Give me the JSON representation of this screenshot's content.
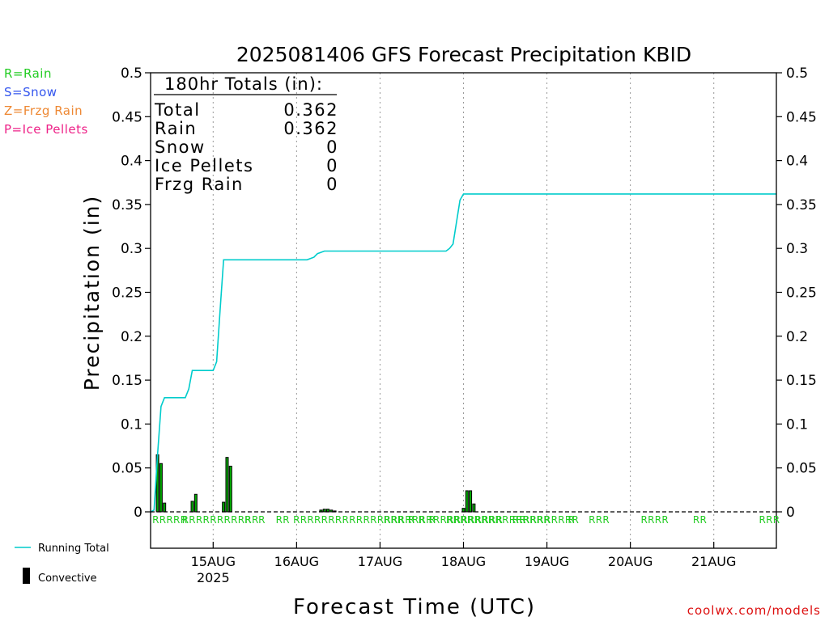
{
  "chart_data": {
    "type": "line",
    "title": "2025081406 GFS Forecast Precipitation KBID",
    "ylabel": "Precipitation (in)",
    "xlabel": "Forecast Time (UTC)",
    "ylim": [
      0,
      0.5
    ],
    "y_ticks": [
      "0",
      "0.05",
      "0.1",
      "0.15",
      "0.2",
      "0.25",
      "0.3",
      "0.35",
      "0.4",
      "0.45",
      "0.5"
    ],
    "x_range_hours": [
      0,
      180
    ],
    "x_ticks": [
      {
        "hour": 18,
        "label": "15AUG",
        "sublabel": "2025"
      },
      {
        "hour": 42,
        "label": "16AUG"
      },
      {
        "hour": 66,
        "label": "17AUG"
      },
      {
        "hour": 90,
        "label": "18AUG"
      },
      {
        "hour": 114,
        "label": "19AUG"
      },
      {
        "hour": 138,
        "label": "20AUG"
      },
      {
        "hour": 162,
        "label": "21AUG"
      }
    ],
    "grid": "vertical dotted at day boundaries",
    "precip_type_legend": [
      {
        "label": "R=Rain",
        "color": "#22cc22"
      },
      {
        "label": "S=Snow",
        "color": "#3355ee"
      },
      {
        "label": "Z=Frzg Rain",
        "color": "#ee8833"
      },
      {
        "label": "P=Ice Pellets",
        "color": "#ee2288"
      }
    ],
    "series": [
      {
        "name": "Running Total",
        "color": "#00cccc",
        "x": [
          0,
          1,
          2,
          3,
          4,
          5,
          6,
          8,
          10,
          11,
          12,
          13,
          14,
          18,
          19,
          20,
          21,
          22,
          24,
          26,
          28,
          30,
          32,
          40,
          45,
          47,
          48,
          50,
          52,
          55,
          60,
          70,
          85,
          86,
          87,
          88,
          89,
          90,
          95,
          120,
          150,
          180
        ],
        "y": [
          0,
          0.002,
          0.065,
          0.12,
          0.13,
          0.13,
          0.13,
          0.13,
          0.13,
          0.14,
          0.161,
          0.161,
          0.161,
          0.161,
          0.171,
          0.23,
          0.287,
          0.287,
          0.287,
          0.287,
          0.287,
          0.287,
          0.287,
          0.287,
          0.287,
          0.29,
          0.294,
          0.297,
          0.297,
          0.297,
          0.297,
          0.297,
          0.297,
          0.3,
          0.305,
          0.33,
          0.355,
          0.362,
          0.362,
          0.362,
          0.362,
          0.362
        ]
      }
    ],
    "bars": {
      "name": "Convective",
      "x": [
        2,
        3,
        4,
        12,
        13,
        21,
        22,
        23,
        49,
        50,
        51,
        52,
        53,
        90,
        91,
        92,
        93
      ],
      "y": [
        0.065,
        0.055,
        0.01,
        0.012,
        0.02,
        0.011,
        0.062,
        0.052,
        0.002,
        0.003,
        0.003,
        0.002,
        0.001,
        0.004,
        0.024,
        0.024,
        0.009
      ]
    },
    "precip_type_marks": [
      {
        "hour": 0.5,
        "text": "RRRRR"
      },
      {
        "hour": 9,
        "text": "RRRRRRRRRRR"
      },
      {
        "hour": 27,
        "text": "R"
      },
      {
        "hour": 31,
        "text": "R"
      },
      {
        "hour": 36,
        "text": "RR"
      },
      {
        "hour": 41,
        "text": "RRRRRRRRRRRRRRRRRRRRRRRRRRRRRR"
      },
      {
        "hour": 67,
        "text": "RRR"
      },
      {
        "hour": 71,
        "text": "R"
      },
      {
        "hour": 74,
        "text": "R"
      },
      {
        "hour": 77,
        "text": "R"
      },
      {
        "hour": 80,
        "text": "R"
      },
      {
        "hour": 85,
        "text": "RRRRRRRRRRRRRRRRRRR"
      },
      {
        "hour": 104,
        "text": "RR"
      },
      {
        "hour": 107,
        "text": "RRR"
      },
      {
        "hour": 111,
        "text": "RR"
      },
      {
        "hour": 120,
        "text": "R"
      },
      {
        "hour": 126,
        "text": "RRR"
      },
      {
        "hour": 141,
        "text": "RRRR"
      },
      {
        "hour": 156,
        "text": "RR"
      },
      {
        "hour": 175,
        "text": "RRR"
      }
    ],
    "totals_box": {
      "header": "180hr Totals (in):",
      "rows": [
        {
          "label": "Total",
          "value": "0.362"
        },
        {
          "label": "Rain",
          "value": "0.362"
        },
        {
          "label": "Snow",
          "value": "0"
        },
        {
          "label": "Ice Pellets",
          "value": "0"
        },
        {
          "label": "Frzg Rain",
          "value": "0"
        }
      ]
    },
    "legend": {
      "running_total_label": "Running Total",
      "convective_label": "Convective"
    },
    "credit": "coolwx.com/models"
  }
}
